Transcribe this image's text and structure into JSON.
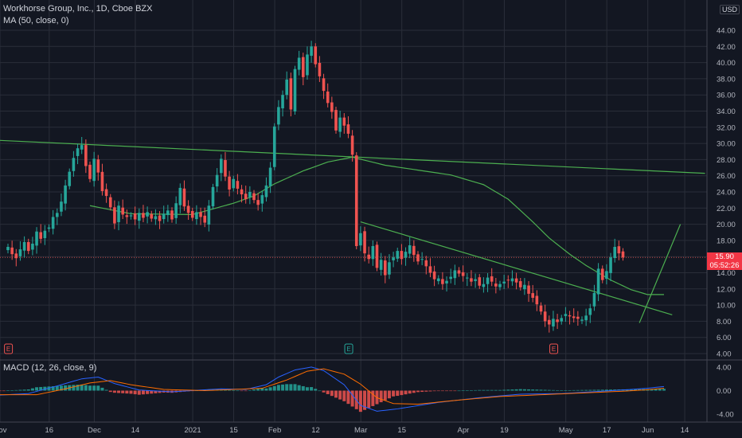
{
  "legend": {
    "symbol": "Workhorse Group, Inc., 1D, Cboe BZX",
    "ma": "MA (50, close, 0)",
    "macd": "MACD (12, 26, close, 9)"
  },
  "currency": "USD",
  "price_tag": {
    "price": "15.90",
    "countdown": "05:52:26"
  },
  "colors": {
    "up": "#26a69a",
    "down": "#ef5350",
    "ma": "#4caf50",
    "macd": "#2962ff",
    "signal": "#ff6d00",
    "bg": "#131722",
    "grid": "#2a2e39"
  },
  "chart_data": [
    {
      "type": "candlestick",
      "x_ticks": [
        "Nov",
        "16",
        "Dec",
        "14",
        "2021",
        "15",
        "Feb",
        "12",
        "Mar",
        "15",
        "Apr",
        "19",
        "May",
        "17",
        "Jun",
        "14"
      ],
      "y_ticks": [
        "4.00",
        "6.00",
        "8.00",
        "10.00",
        "12.00",
        "14.00",
        "16.00",
        "18.00",
        "20.00",
        "22.00",
        "24.00",
        "26.00",
        "28.00",
        "30.00",
        "32.00",
        "34.00",
        "36.00",
        "38.00",
        "40.00",
        "42.00",
        "44.00"
      ],
      "ylim": [
        4,
        46
      ],
      "last_price": 15.9,
      "closes": [
        17.2,
        16.3,
        15.8,
        16.9,
        17.8,
        16.7,
        17.6,
        19.1,
        18.2,
        19.2,
        19.6,
        20.9,
        21.4,
        22.8,
        24.8,
        26.5,
        28.2,
        29.4,
        29.8,
        27.2,
        25.6,
        28.1,
        26.4,
        24.1,
        23.5,
        22.1,
        20.1,
        22.3,
        21.2,
        20.9,
        21.1,
        20.6,
        21.4,
        20.8,
        21.5,
        20.7,
        21.0,
        20.4,
        21.3,
        21.7,
        20.6,
        22.6,
        24.5,
        22.2,
        21.4,
        20.8,
        21.5,
        20.9,
        20.2,
        22.3,
        24.6,
        26.1,
        28.1,
        25.9,
        24.3,
        25.6,
        24.4,
        23.7,
        23.1,
        24.0,
        23.0,
        22.4,
        23.6,
        24.8,
        27.0,
        32.1,
        34.5,
        36.0,
        37.9,
        34.2,
        39.2,
        40.6,
        38.2,
        41.0,
        42.0,
        39.8,
        38.3,
        36.5,
        35.0,
        33.9,
        31.6,
        33.2,
        32.2,
        31.2,
        28.6,
        17.3,
        18.9,
        16.4,
        15.7,
        17.3,
        14.6,
        15.6,
        13.7,
        15.3,
        15.9,
        16.7,
        15.7,
        16.6,
        17.4,
        16.2,
        15.4,
        15.7,
        14.8,
        14.0,
        13.2,
        13.3,
        12.6,
        13.0,
        13.5,
        14.3,
        13.9,
        13.6,
        13.4,
        12.9,
        13.2,
        12.4,
        12.6,
        13.4,
        12.9,
        12.3,
        12.6,
        12.9,
        13.1,
        13.3,
        12.8,
        12.2,
        12.5,
        11.4,
        10.9,
        10.1,
        9.2,
        8.0,
        7.6,
        8.3,
        7.9,
        8.4,
        8.9,
        8.6,
        8.4,
        8.3,
        8.2,
        8.7,
        9.6,
        11.5,
        14.5,
        13.1,
        14.2,
        15.9,
        17.2,
        16.4,
        15.9
      ],
      "ma50": {
        "start_index": 20,
        "anchors": [
          [
            20,
            22.3
          ],
          [
            30,
            21.3
          ],
          [
            45,
            21.2
          ],
          [
            55,
            22.6
          ],
          [
            60,
            23.5
          ],
          [
            65,
            25.0
          ],
          [
            72,
            26.6
          ],
          [
            78,
            27.7
          ],
          [
            84,
            28.3
          ],
          [
            92,
            27.3
          ],
          [
            100,
            26.7
          ],
          [
            108,
            26.1
          ],
          [
            116,
            24.9
          ],
          [
            122,
            23.1
          ],
          [
            128,
            20.3
          ],
          [
            132,
            18.3
          ],
          [
            137,
            16.3
          ],
          [
            141,
            14.9
          ],
          [
            147,
            13.1
          ],
          [
            152,
            11.9
          ],
          [
            156,
            11.3
          ],
          [
            160,
            11.3
          ]
        ]
      },
      "trendlines": [
        {
          "from": [
            -3,
            30.4
          ],
          "to": [
            170,
            26.3
          ]
        },
        {
          "from": [
            86,
            20.3
          ],
          "to": [
            162,
            8.8
          ]
        },
        {
          "from": [
            154,
            7.8
          ],
          "to": [
            164,
            20.0
          ]
        }
      ],
      "earnings_markers": [
        {
          "index": 4,
          "label": "E"
        },
        {
          "index": 87,
          "label": "E"
        },
        {
          "index": 137,
          "label": "E"
        }
      ]
    },
    {
      "type": "macd",
      "title": "MACD (12, 26, close, 9)",
      "y_ticks": [
        "4.00",
        "0.00",
        "-4.00"
      ],
      "ylim": [
        -5,
        5
      ],
      "macd_anchors": [
        [
          -3,
          -0.8
        ],
        [
          5,
          -0.5
        ],
        [
          12,
          0.8
        ],
        [
          18,
          2.0
        ],
        [
          22,
          2.3
        ],
        [
          26,
          1.2
        ],
        [
          32,
          0.1
        ],
        [
          40,
          -0.2
        ],
        [
          47,
          0.1
        ],
        [
          52,
          0.3
        ],
        [
          58,
          0.2
        ],
        [
          63,
          1.0
        ],
        [
          66,
          2.3
        ],
        [
          70,
          3.5
        ],
        [
          74,
          4.0
        ],
        [
          77,
          3.4
        ],
        [
          82,
          1.0
        ],
        [
          86,
          -2.5
        ],
        [
          90,
          -3.5
        ],
        [
          95,
          -3.1
        ],
        [
          105,
          -2.0
        ],
        [
          115,
          -1.2
        ],
        [
          125,
          -0.6
        ],
        [
          135,
          -0.5
        ],
        [
          145,
          -0.1
        ],
        [
          152,
          0.2
        ],
        [
          156,
          0.4
        ],
        [
          160,
          0.7
        ]
      ],
      "signal_anchors": [
        [
          -3,
          -0.7
        ],
        [
          7,
          -0.7
        ],
        [
          14,
          0.3
        ],
        [
          20,
          1.3
        ],
        [
          25,
          1.7
        ],
        [
          30,
          1.0
        ],
        [
          38,
          0.2
        ],
        [
          48,
          0.0
        ],
        [
          55,
          0.2
        ],
        [
          62,
          0.4
        ],
        [
          68,
          1.8
        ],
        [
          73,
          3.3
        ],
        [
          77,
          3.7
        ],
        [
          82,
          2.8
        ],
        [
          86,
          1.1
        ],
        [
          90,
          -1.2
        ],
        [
          94,
          -2.2
        ],
        [
          100,
          -2.3
        ],
        [
          110,
          -1.6
        ],
        [
          120,
          -1.0
        ],
        [
          130,
          -0.7
        ],
        [
          140,
          -0.4
        ],
        [
          150,
          -0.1
        ],
        [
          155,
          0.1
        ],
        [
          160,
          0.4
        ]
      ]
    }
  ]
}
